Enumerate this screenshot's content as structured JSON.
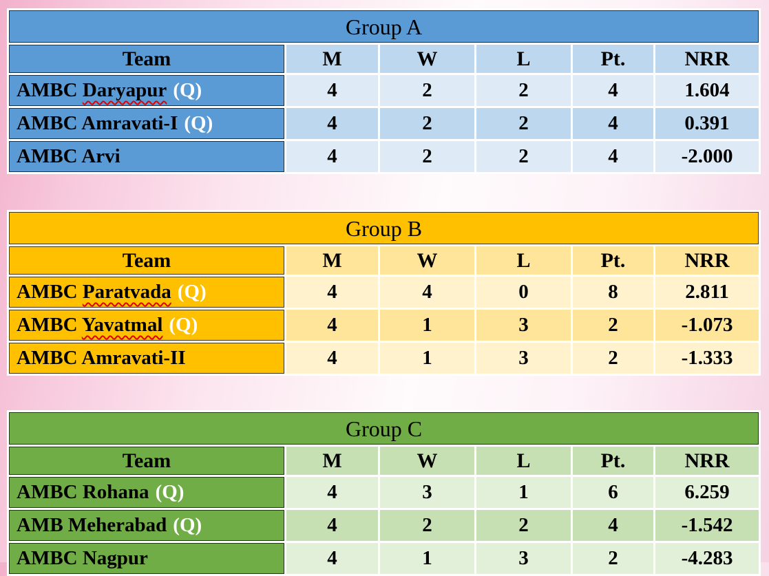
{
  "columns": [
    "Team",
    "M",
    "W",
    "L",
    "Pt.",
    "NRR"
  ],
  "qualifier_label": "(Q)",
  "spellcheck_color": "#e00000",
  "background": {
    "gradient_left": "#f3b1cb",
    "gradient_middle": "#fefbfc",
    "gradient_right": "#f6d2e3"
  },
  "groups": [
    {
      "id": "a",
      "title": "Group A",
      "colors": {
        "accent": "#5B9BD5",
        "band": "#BDD7EE",
        "light": "#DEEBF7"
      },
      "rows": [
        {
          "team_prefix": "AMBC ",
          "team_misspelled": "Daryapur",
          "qualified": true,
          "m": "4",
          "w": "2",
          "l": "2",
          "pt": "4",
          "nrr": "1.604"
        },
        {
          "team_prefix": "AMBC Amravati-I",
          "team_misspelled": "",
          "qualified": true,
          "m": "4",
          "w": "2",
          "l": "2",
          "pt": "4",
          "nrr": "0.391"
        },
        {
          "team_prefix": "AMBC Arvi",
          "team_misspelled": "",
          "qualified": false,
          "m": "4",
          "w": "2",
          "l": "2",
          "pt": "4",
          "nrr": "-2.000"
        }
      ]
    },
    {
      "id": "b",
      "title": "Group B",
      "colors": {
        "accent": "#FFC000",
        "band": "#FFE599",
        "light": "#FFF2CC"
      },
      "rows": [
        {
          "team_prefix": "AMBC ",
          "team_misspelled": "Paratvada",
          "qualified": true,
          "m": "4",
          "w": "4",
          "l": "0",
          "pt": "8",
          "nrr": "2.811"
        },
        {
          "team_prefix": "AMBC ",
          "team_misspelled": "Yavatmal",
          "qualified": true,
          "m": "4",
          "w": "1",
          "l": "3",
          "pt": "2",
          "nrr": "-1.073"
        },
        {
          "team_prefix": "AMBC Amravati-II",
          "team_misspelled": "",
          "qualified": false,
          "m": "4",
          "w": "1",
          "l": "3",
          "pt": "2",
          "nrr": "-1.333"
        }
      ]
    },
    {
      "id": "c",
      "title": "Group C",
      "colors": {
        "accent": "#70AD47",
        "band": "#C6E0B4",
        "light": "#E2EFD9"
      },
      "rows": [
        {
          "team_prefix": "AMBC Rohana",
          "team_misspelled": "",
          "qualified": true,
          "m": "4",
          "w": "3",
          "l": "1",
          "pt": "6",
          "nrr": "6.259"
        },
        {
          "team_prefix": "AMB Meherabad",
          "team_misspelled": "",
          "qualified": true,
          "m": "4",
          "w": "2",
          "l": "2",
          "pt": "4",
          "nrr": "-1.542"
        },
        {
          "team_prefix": "AMBC Nagpur",
          "team_misspelled": "",
          "qualified": false,
          "m": "4",
          "w": "1",
          "l": "3",
          "pt": "2",
          "nrr": "-4.283"
        }
      ]
    }
  ]
}
